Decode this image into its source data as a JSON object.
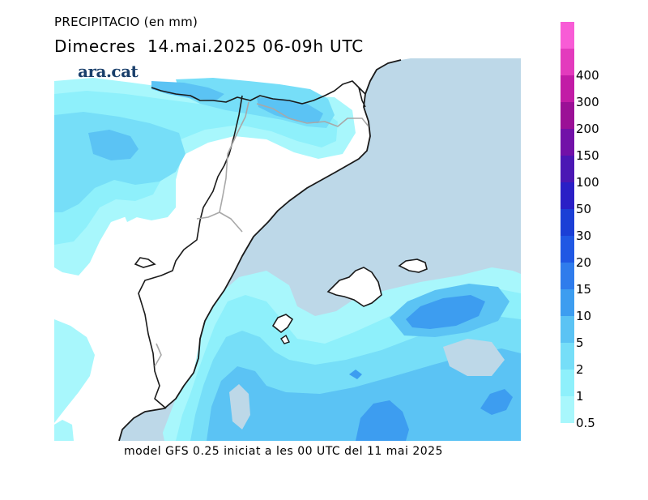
{
  "header": {
    "title": "PRECIPITACIO (en mm)",
    "subtitle": "Dimecres  14.mai.2025 06-09h UTC"
  },
  "logo": {
    "text": "ara.cat"
  },
  "footer": {
    "text": "model GFS 0.25 iniciat a les 00 UTC del 11 mai 2025"
  },
  "legend": {
    "bins": [
      {
        "label": "0.5",
        "color": "#a8f7fc"
      },
      {
        "label": "1",
        "color": "#8ef0fb"
      },
      {
        "label": "2",
        "color": "#76def8"
      },
      {
        "label": "5",
        "color": "#5bc3f4"
      },
      {
        "label": "10",
        "color": "#3d9df0"
      },
      {
        "label": "15",
        "color": "#2f7cec"
      },
      {
        "label": "20",
        "color": "#2058e4"
      },
      {
        "label": "30",
        "color": "#1b3fd6"
      },
      {
        "label": "50",
        "color": "#2a1fc6"
      },
      {
        "label": "100",
        "color": "#4b17b4"
      },
      {
        "label": "150",
        "color": "#7211a8"
      },
      {
        "label": "200",
        "color": "#9b1096"
      },
      {
        "label": "300",
        "color": "#c21ca6"
      },
      {
        "label": "400",
        "color": "#e33bbd"
      },
      {
        "label": "",
        "color": "#f85cd6"
      }
    ]
  },
  "colors": {
    "sea": "#bdd8e8",
    "land": "#ffffff",
    "coast": "#1a1a1a",
    "border": "#a8a8a8"
  }
}
